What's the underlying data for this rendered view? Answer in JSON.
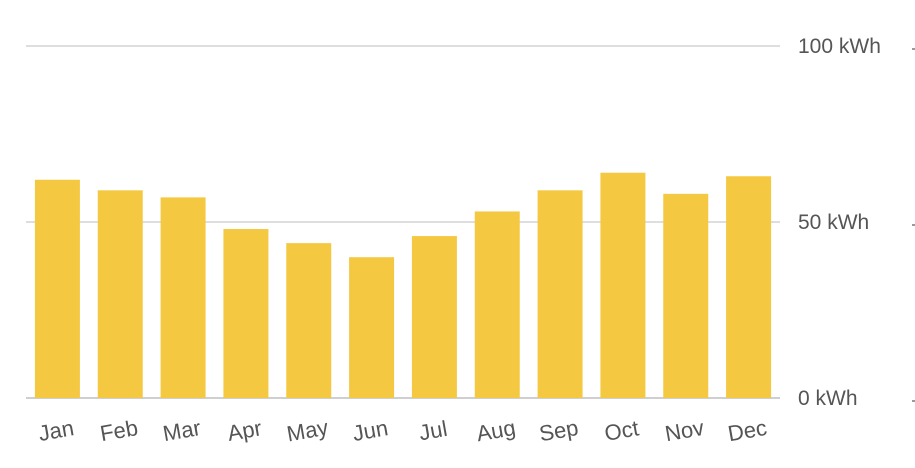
{
  "chart_data": {
    "type": "bar",
    "categories": [
      "Jan",
      "Feb",
      "Mar",
      "Apr",
      "May",
      "Jun",
      "Jul",
      "Aug",
      "Sep",
      "Oct",
      "Nov",
      "Dec"
    ],
    "values": [
      62,
      59,
      57,
      48,
      44,
      40,
      46,
      53,
      59,
      64,
      58,
      63
    ],
    "y_ticks": [
      "0 kWh",
      "50 kWh",
      "100 kWh"
    ],
    "ylim": [
      0,
      100
    ],
    "unit": "kWh",
    "grid": true,
    "bar_color": "#f5c842"
  }
}
